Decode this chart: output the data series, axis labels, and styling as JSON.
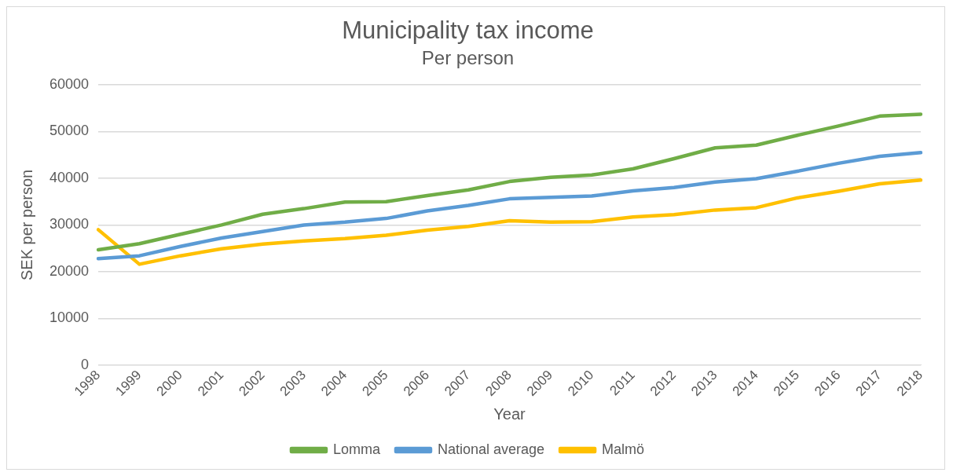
{
  "chart_data": {
    "type": "line",
    "title": "Municipality tax income",
    "subtitle": "Per person",
    "xlabel": "Year",
    "ylabel": "SEK per person",
    "categories": [
      "1998",
      "1999",
      "2000",
      "2001",
      "2002",
      "2003",
      "2004",
      "2005",
      "2006",
      "2007",
      "2008",
      "2009",
      "2010",
      "2011",
      "2012",
      "2013",
      "2014",
      "2015",
      "2016",
      "2017",
      "2018"
    ],
    "series": [
      {
        "name": "Lomma",
        "color": "#70ad47",
        "values": [
          24700,
          26000,
          28000,
          30000,
          32300,
          33500,
          34900,
          35000,
          36300,
          37500,
          39300,
          40200,
          40700,
          42000,
          44200,
          46500,
          47100,
          49200,
          51200,
          53300,
          53700
        ]
      },
      {
        "name": "National average",
        "color": "#5b9bd5",
        "values": [
          22800,
          23400,
          25400,
          27200,
          28600,
          30000,
          30600,
          31400,
          33000,
          34200,
          35600,
          35900,
          36200,
          37300,
          38000,
          39200,
          39900,
          41500,
          43200,
          44700,
          45500
        ]
      },
      {
        "name": "Malmö",
        "color": "#ffc000",
        "values": [
          29000,
          21600,
          23400,
          24900,
          25900,
          26600,
          27100,
          27800,
          28900,
          29700,
          30900,
          30600,
          30700,
          31700,
          32200,
          33200,
          33700,
          35800,
          37200,
          38800,
          39600
        ]
      }
    ],
    "ylim": [
      0,
      60000
    ],
    "yticks": [
      0,
      10000,
      20000,
      30000,
      40000,
      50000,
      60000
    ],
    "grid": "y",
    "legend": "bottom",
    "marker": "none",
    "line_style": "solid"
  }
}
